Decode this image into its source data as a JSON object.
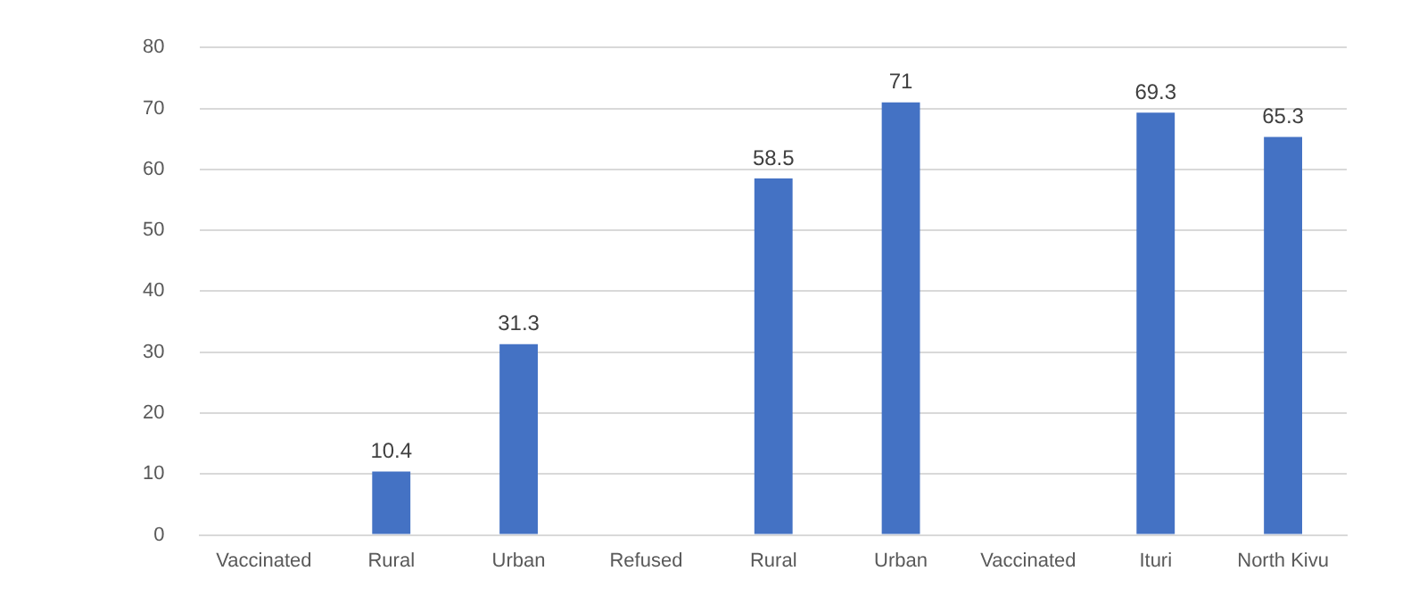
{
  "chart_data": {
    "type": "bar",
    "categories": [
      "Vaccinated",
      "Rural",
      "Urban",
      "Refused",
      "Rural",
      "Urban",
      "Vaccinated",
      "Ituri",
      "North Kivu"
    ],
    "values": [
      null,
      10.4,
      31.3,
      null,
      58.5,
      71,
      null,
      69.3,
      65.3
    ],
    "color": "#4472c4",
    "ylim": [
      0,
      80
    ],
    "yticks": [
      0,
      10,
      20,
      30,
      40,
      50,
      60,
      70,
      80
    ],
    "grid": "y",
    "data_labels": true,
    "legend": false
  }
}
